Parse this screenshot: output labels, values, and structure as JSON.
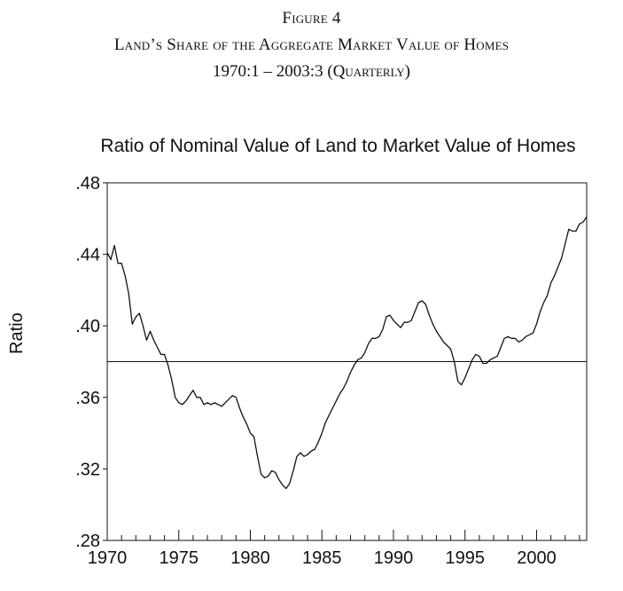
{
  "figure": {
    "label": "Figure 4",
    "title": "Land’s Share of the Aggregate Market Value of Homes",
    "subtitle": "1970:1 – 2003:3 (Quarterly)"
  },
  "chart_data": {
    "type": "line",
    "title": "Ratio of Nominal Value of Land to Market Value of Homes",
    "xlabel": "",
    "ylabel": "Ratio",
    "xlim": [
      1970.0,
      2003.5
    ],
    "ylim": [
      0.28,
      0.48
    ],
    "x_ticks": [
      {
        "value": 1970,
        "label": "1970"
      },
      {
        "value": 1975,
        "label": "1975"
      },
      {
        "value": 1980,
        "label": "1980"
      },
      {
        "value": 1985,
        "label": "1985"
      },
      {
        "value": 1990,
        "label": "1990"
      },
      {
        "value": 1995,
        "label": "1995"
      },
      {
        "value": 2000,
        "label": "2000"
      }
    ],
    "y_ticks": [
      {
        "value": 0.28,
        "label": ".28"
      },
      {
        "value": 0.32,
        "label": ".32"
      },
      {
        "value": 0.36,
        "label": ".36"
      },
      {
        "value": 0.4,
        "label": ".40"
      },
      {
        "value": 0.44,
        "label": ".44"
      },
      {
        "value": 0.48,
        "label": ".48"
      }
    ],
    "reference_line": 0.38,
    "grid": false,
    "legend": "none",
    "line_color": "#111111",
    "series": [
      {
        "x": [
          1970.0,
          1970.25,
          1970.5,
          1970.75,
          1971.0,
          1971.25,
          1971.5,
          1971.75,
          1972.0,
          1972.25,
          1972.5,
          1972.75,
          1973.0,
          1973.25,
          1973.5,
          1973.75,
          1974.0,
          1974.25,
          1974.5,
          1974.75,
          1975.0,
          1975.25,
          1975.5,
          1975.75,
          1976.0,
          1976.25,
          1976.5,
          1976.75,
          1977.0,
          1977.25,
          1977.5,
          1977.75,
          1978.0,
          1978.25,
          1978.5,
          1978.75,
          1979.0,
          1979.25,
          1979.5,
          1979.75,
          1980.0,
          1980.25,
          1980.5,
          1980.75,
          1981.0,
          1981.25,
          1981.5,
          1981.75,
          1982.0,
          1982.25,
          1982.5,
          1982.75,
          1983.0,
          1983.25,
          1983.5,
          1983.75,
          1984.0,
          1984.25,
          1984.5,
          1984.75,
          1985.0,
          1985.25,
          1985.5,
          1985.75,
          1986.0,
          1986.25,
          1986.5,
          1986.75,
          1987.0,
          1987.25,
          1987.5,
          1987.75,
          1988.0,
          1988.25,
          1988.5,
          1988.75,
          1989.0,
          1989.25,
          1989.5,
          1989.75,
          1990.0,
          1990.25,
          1990.5,
          1990.75,
          1991.0,
          1991.25,
          1991.5,
          1991.75,
          1992.0,
          1992.25,
          1992.5,
          1992.75,
          1993.0,
          1993.25,
          1993.5,
          1993.75,
          1994.0,
          1994.25,
          1994.5,
          1994.75,
          1995.0,
          1995.25,
          1995.5,
          1995.75,
          1996.0,
          1996.25,
          1996.5,
          1996.75,
          1997.0,
          1997.25,
          1997.5,
          1997.75,
          1998.0,
          1998.25,
          1998.5,
          1998.75,
          1999.0,
          1999.25,
          1999.5,
          1999.75,
          2000.0,
          2000.25,
          2000.5,
          2000.75,
          2001.0,
          2001.25,
          2001.5,
          2001.75,
          2002.0,
          2002.25,
          2002.5,
          2002.75,
          2003.0,
          2003.25,
          2003.5
        ],
        "y": [
          0.441,
          0.437,
          0.445,
          0.435,
          0.435,
          0.428,
          0.418,
          0.401,
          0.405,
          0.407,
          0.4,
          0.392,
          0.397,
          0.392,
          0.388,
          0.384,
          0.384,
          0.378,
          0.37,
          0.36,
          0.357,
          0.356,
          0.358,
          0.361,
          0.364,
          0.36,
          0.36,
          0.356,
          0.357,
          0.356,
          0.357,
          0.356,
          0.355,
          0.357,
          0.359,
          0.361,
          0.36,
          0.354,
          0.349,
          0.345,
          0.34,
          0.338,
          0.327,
          0.317,
          0.315,
          0.316,
          0.319,
          0.318,
          0.314,
          0.311,
          0.309,
          0.312,
          0.319,
          0.327,
          0.329,
          0.327,
          0.328,
          0.33,
          0.331,
          0.335,
          0.34,
          0.346,
          0.35,
          0.354,
          0.358,
          0.362,
          0.365,
          0.369,
          0.374,
          0.378,
          0.381,
          0.382,
          0.385,
          0.39,
          0.393,
          0.393,
          0.394,
          0.398,
          0.405,
          0.406,
          0.403,
          0.401,
          0.399,
          0.402,
          0.402,
          0.403,
          0.408,
          0.413,
          0.414,
          0.412,
          0.406,
          0.401,
          0.397,
          0.394,
          0.391,
          0.389,
          0.387,
          0.38,
          0.369,
          0.367,
          0.371,
          0.376,
          0.381,
          0.384,
          0.383,
          0.379,
          0.379,
          0.381,
          0.382,
          0.383,
          0.388,
          0.393,
          0.394,
          0.393,
          0.393,
          0.391,
          0.392,
          0.394,
          0.395,
          0.396,
          0.401,
          0.408,
          0.413,
          0.417,
          0.424,
          0.428,
          0.433,
          0.438,
          0.446,
          0.454,
          0.453,
          0.453,
          0.457,
          0.458,
          0.461
        ]
      }
    ]
  }
}
